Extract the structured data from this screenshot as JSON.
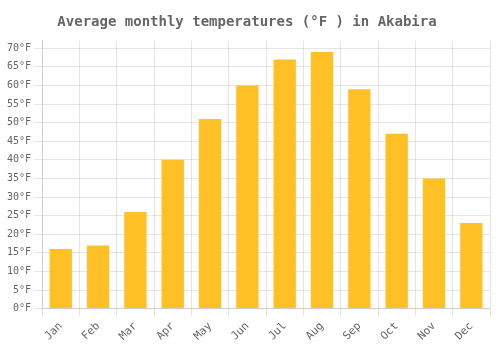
{
  "chart_data": {
    "type": "bar",
    "title": "Average monthly temperatures (°F ) in Akabira",
    "categories": [
      "Jan",
      "Feb",
      "Mar",
      "Apr",
      "May",
      "Jun",
      "Jul",
      "Aug",
      "Sep",
      "Oct",
      "Nov",
      "Dec"
    ],
    "values": [
      16,
      17,
      26,
      40,
      51,
      60,
      67,
      69,
      59,
      47,
      35,
      23
    ],
    "color": "#FFC125",
    "ylim": [
      0,
      72
    ],
    "yticks": [
      {
        "value": 0,
        "label": "0°F"
      },
      {
        "value": 5,
        "label": "5°F"
      },
      {
        "value": 10,
        "label": "10°F"
      },
      {
        "value": 15,
        "label": "15°F"
      },
      {
        "value": 20,
        "label": "20°F"
      },
      {
        "value": 25,
        "label": "25°F"
      },
      {
        "value": 30,
        "label": "30°F"
      },
      {
        "value": 35,
        "label": "35°F"
      },
      {
        "value": 40,
        "label": "40°F"
      },
      {
        "value": 45,
        "label": "45°F"
      },
      {
        "value": 50,
        "label": "50°F"
      },
      {
        "value": 55,
        "label": "55°F"
      },
      {
        "value": 60,
        "label": "60°F"
      },
      {
        "value": 65,
        "label": "65°F"
      },
      {
        "value": 70,
        "label": "70°F"
      }
    ],
    "grid": true
  }
}
